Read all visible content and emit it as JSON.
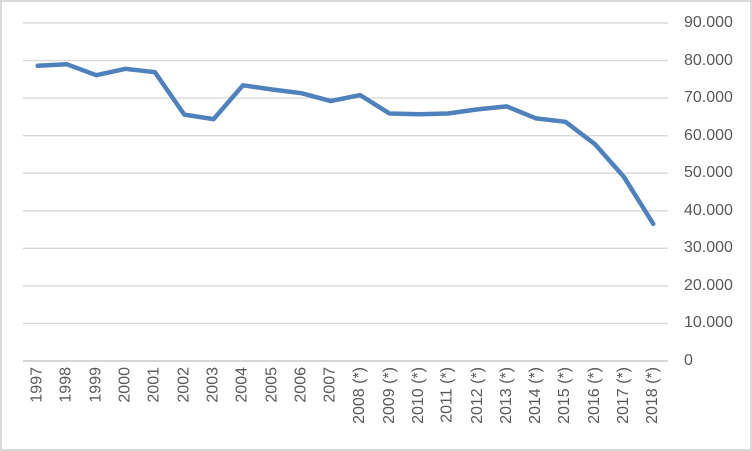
{
  "chart_data": {
    "type": "line",
    "title": "",
    "categories": [
      "1997",
      "1998",
      "1999",
      "2000",
      "2001",
      "2002",
      "2003",
      "2004",
      "2005",
      "2006",
      "2007",
      "2008 (*)",
      "2009 (*)",
      "2010 (*)",
      "2011 (*)",
      "2012 (*)",
      "2013 (*)",
      "2014 (*)",
      "2015 (*)",
      "2016 (*)",
      "2017 (*)",
      "2018 (*)"
    ],
    "series": [
      {
        "name": "",
        "color": "#4F81BD",
        "values": [
          78600,
          79000,
          76100,
          77800,
          76900,
          65600,
          64400,
          73400,
          72300,
          71300,
          69200,
          70800,
          65900,
          65700,
          65900,
          67000,
          67800,
          64600,
          63700,
          57800,
          49000,
          36500
        ]
      }
    ],
    "xlabel": "",
    "ylabel": "",
    "ylim": [
      0,
      90000
    ],
    "ytick_step": 10000,
    "ytick_labels": [
      "0",
      "10.000",
      "20.000",
      "30.000",
      "40.000",
      "50.000",
      "60.000",
      "70.000",
      "80.000",
      "90.000"
    ],
    "yaxis_side": "right",
    "grid": true,
    "xlabel_rotation": -90,
    "legend_position": "none",
    "number_format": "thousands-dot"
  },
  "frame": {
    "background": "#FFFFFF",
    "border_color": "#D9D9D9",
    "grid_color": "#D9D9D9",
    "axis_color": "#C9C9C9",
    "text_color": "#595959",
    "line_color": "#4F81BD"
  }
}
